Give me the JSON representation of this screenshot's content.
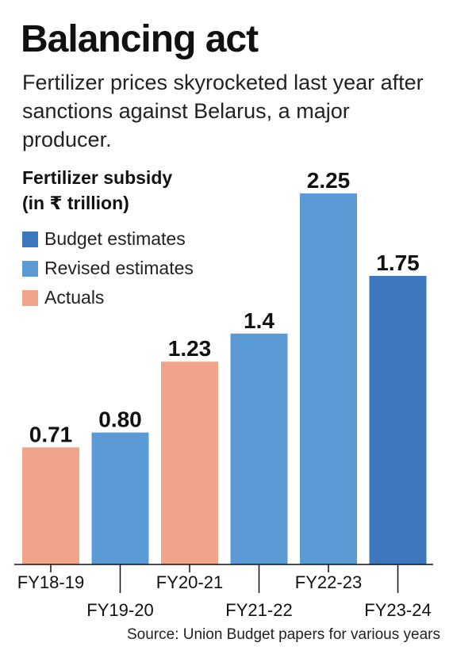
{
  "headline": "Balancing act",
  "subheadline": "Fertilizer prices skyrocketed last year after sanctions against Belarus, a major producer.",
  "source": "Source: Union Budget papers for various years",
  "chart_data": {
    "type": "bar",
    "title_line1": "Fertilizer subsidy",
    "title_line2": "(in ₹ trillion)",
    "categories": [
      "FY18-19",
      "FY19-20",
      "FY20-21",
      "FY21-22",
      "FY22-23",
      "FY23-24"
    ],
    "values": [
      0.71,
      0.8,
      1.23,
      1.4,
      2.25,
      1.75
    ],
    "value_labels": [
      "0.71",
      "0.80",
      "1.23",
      "1.4",
      "2.25",
      "1.75"
    ],
    "estimate_types": [
      "Actuals",
      "Revised estimates",
      "Actuals",
      "Revised estimates",
      "Revised estimates",
      "Budget estimates"
    ],
    "legend": [
      {
        "label": "Budget estimates",
        "color": "#3d78bf"
      },
      {
        "label": "Revised estimates",
        "color": "#5b9bd5"
      },
      {
        "label": "Actuals",
        "color": "#f0a48a"
      }
    ],
    "ylim": [
      0,
      2.25
    ],
    "grid": false,
    "legend_position": "top-left"
  }
}
